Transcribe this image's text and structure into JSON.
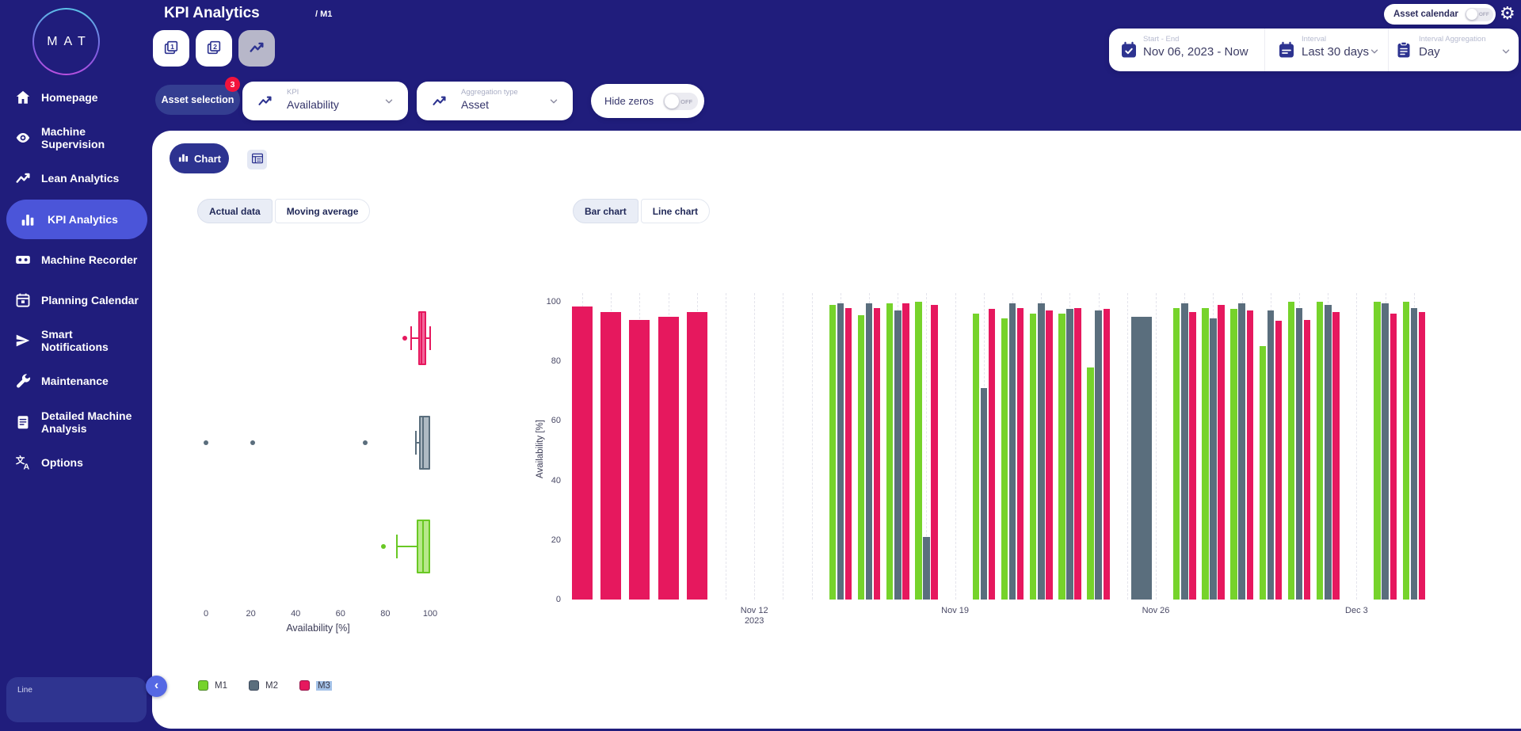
{
  "app": {
    "logo_text": "MAT",
    "page_title": "KPI Analytics",
    "breadcrumb": "/ M1"
  },
  "sidebar": {
    "items": [
      {
        "label": "Homepage",
        "icon": "home-icon",
        "active": false
      },
      {
        "label": "Machine Supervision",
        "icon": "eye-icon",
        "active": false
      },
      {
        "label": "Lean Analytics",
        "icon": "trend-icon",
        "active": false
      },
      {
        "label": "KPI Analytics",
        "icon": "bar-chart-icon",
        "active": true
      },
      {
        "label": "Machine Recorder",
        "icon": "recorder-icon",
        "active": false
      },
      {
        "label": "Planning Calendar",
        "icon": "calendar-icon",
        "active": false
      },
      {
        "label": "Smart Notifications",
        "icon": "send-icon",
        "active": false
      },
      {
        "label": "Maintenance",
        "icon": "wrench-icon",
        "active": false
      },
      {
        "label": "Detailed Machine Analysis",
        "icon": "document-icon",
        "active": false
      },
      {
        "label": "Options",
        "icon": "translate-icon",
        "active": false
      }
    ],
    "bottom_card_label": "Line"
  },
  "topbar": {
    "asset_calendar": {
      "label": "Asset calendar",
      "state": "OFF"
    },
    "date_range": {
      "label": "Start - End",
      "value": "Nov 06, 2023 - Now"
    },
    "interval": {
      "label": "Interval",
      "value": "Last 30 days"
    },
    "interval_aggregation": {
      "label": "Interval Aggregation",
      "value": "Day"
    }
  },
  "filters": {
    "asset_selection": {
      "label": "Asset selection",
      "badge": "3"
    },
    "kpi": {
      "label": "KPI",
      "value": "Availability"
    },
    "aggregation_type": {
      "label": "Aggregation type",
      "value": "Asset"
    },
    "hide_zeros": {
      "label": "Hide zeros",
      "state": "OFF"
    }
  },
  "view": {
    "chart_tab_label": "Chart",
    "data_mode": {
      "options": [
        "Actual data",
        "Moving average"
      ],
      "selected": "Actual data"
    },
    "chart_type": {
      "options": [
        "Bar chart",
        "Line chart"
      ],
      "selected": "Bar chart"
    }
  },
  "legend": {
    "items": [
      {
        "name": "M1",
        "color": "#76d32b",
        "highlighted": false
      },
      {
        "name": "M2",
        "color": "#5a6e7d",
        "highlighted": false
      },
      {
        "name": "M3",
        "color": "#e6185e",
        "highlighted": true
      }
    ]
  },
  "chart_data": [
    {
      "type": "boxplot",
      "orientation": "horizontal",
      "xlabel": "Availability [%]",
      "xticks": [
        0,
        20,
        40,
        60,
        80,
        100
      ],
      "xlim": [
        0,
        105
      ],
      "series": [
        {
          "name": "M3",
          "color": "#e6185e",
          "fill": "#f2679a",
          "low": 91.5,
          "q1": 94.8,
          "median": 96.2,
          "q3": 98.3,
          "high": 99.9,
          "outliers": [
            88.7
          ]
        },
        {
          "name": "M2",
          "color": "#5a6e7d",
          "fill": "#aebac3",
          "low": 93.6,
          "q1": 95.2,
          "median": 96.8,
          "q3": 100,
          "high": 100,
          "outliers": [
            0,
            21,
            71
          ]
        },
        {
          "name": "M1",
          "color": "#69c824",
          "fill": "#b8e88b",
          "low": 85,
          "q1": 94,
          "median": 96.8,
          "q3": 100,
          "high": 100,
          "outliers": [
            79
          ]
        }
      ]
    },
    {
      "type": "bar",
      "ylabel": "Availability [%]",
      "ylim": [
        0,
        100
      ],
      "yticks": [
        0,
        20,
        40,
        60,
        80,
        100
      ],
      "grid": "vertical-dashed-daily",
      "legend_position": "bottom-left",
      "series": [
        {
          "name": "M1",
          "color": "#76d32b"
        },
        {
          "name": "M2",
          "color": "#5a6e7d"
        },
        {
          "name": "M3",
          "color": "#e6185e"
        }
      ],
      "xticks": [
        {
          "day": 6,
          "label": "Nov 12",
          "sublabel": "2023"
        },
        {
          "day": 13,
          "label": "Nov 19",
          "sublabel": ""
        },
        {
          "day": 20,
          "label": "Nov 26",
          "sublabel": ""
        },
        {
          "day": 27,
          "label": "Dec 3",
          "sublabel": ""
        }
      ],
      "days": [
        {
          "date": "Nov 6",
          "M1": null,
          "M2": null,
          "M3": 98.5
        },
        {
          "date": "Nov 7",
          "M1": null,
          "M2": null,
          "M3": 96.5
        },
        {
          "date": "Nov 8",
          "M1": null,
          "M2": null,
          "M3": 94
        },
        {
          "date": "Nov 9",
          "M1": null,
          "M2": null,
          "M3": 95
        },
        {
          "date": "Nov 10",
          "M1": null,
          "M2": null,
          "M3": 96.5
        },
        {
          "date": "Nov 11",
          "M1": null,
          "M2": null,
          "M3": null
        },
        {
          "date": "Nov 12",
          "M1": null,
          "M2": null,
          "M3": null
        },
        {
          "date": "Nov 13",
          "M1": null,
          "M2": null,
          "M3": null
        },
        {
          "date": "Nov 14",
          "M1": null,
          "M2": null,
          "M3": null
        },
        {
          "date": "Nov 15",
          "M1": 99,
          "M2": 99.5,
          "M3": 98
        },
        {
          "date": "Nov 16",
          "M1": 95.5,
          "M2": 99.5,
          "M3": 98
        },
        {
          "date": "Nov 17",
          "M1": 99.5,
          "M2": 97,
          "M3": 99.5
        },
        {
          "date": "Nov 18",
          "M1": 100,
          "M2": 21,
          "M3": 99
        },
        {
          "date": "Nov 19",
          "M1": null,
          "M2": null,
          "M3": null
        },
        {
          "date": "Nov 20",
          "M1": 96,
          "M2": 71,
          "M3": 97.5
        },
        {
          "date": "Nov 21",
          "M1": 94.5,
          "M2": 99.5,
          "M3": 98
        },
        {
          "date": "Nov 22",
          "M1": 96,
          "M2": 99.5,
          "M3": 97
        },
        {
          "date": "Nov 23",
          "M1": 96,
          "M2": 97.5,
          "M3": 98
        },
        {
          "date": "Nov 24",
          "M1": 78,
          "M2": 97,
          "M3": 97.5
        },
        {
          "date": "Nov 25",
          "M1": null,
          "M2": 95,
          "M3": null,
          "merged_days": 2
        },
        {
          "date": "Nov 26",
          "M1": null,
          "M2": null,
          "M3": null,
          "merged_into_previous": true
        },
        {
          "date": "Nov 27",
          "M1": 98,
          "M2": 99.5,
          "M3": 96.5
        },
        {
          "date": "Nov 28",
          "M1": 98,
          "M2": 94.5,
          "M3": 99
        },
        {
          "date": "Nov 29",
          "M1": 97.5,
          "M2": 99.5,
          "M3": 97
        },
        {
          "date": "Nov 30",
          "M1": 85,
          "M2": 97,
          "M3": 93.5
        },
        {
          "date": "Dec 1",
          "M1": 100,
          "M2": 98,
          "M3": 94
        },
        {
          "date": "Dec 2",
          "M1": 100,
          "M2": 99,
          "M3": 96.5
        },
        {
          "date": "Dec 3",
          "M1": null,
          "M2": null,
          "M3": null
        },
        {
          "date": "Dec 4",
          "M1": 100,
          "M2": 99.5,
          "M3": 96
        },
        {
          "date": "Dec 5",
          "M1": 100,
          "M2": 98,
          "M3": 96.5
        }
      ]
    }
  ]
}
